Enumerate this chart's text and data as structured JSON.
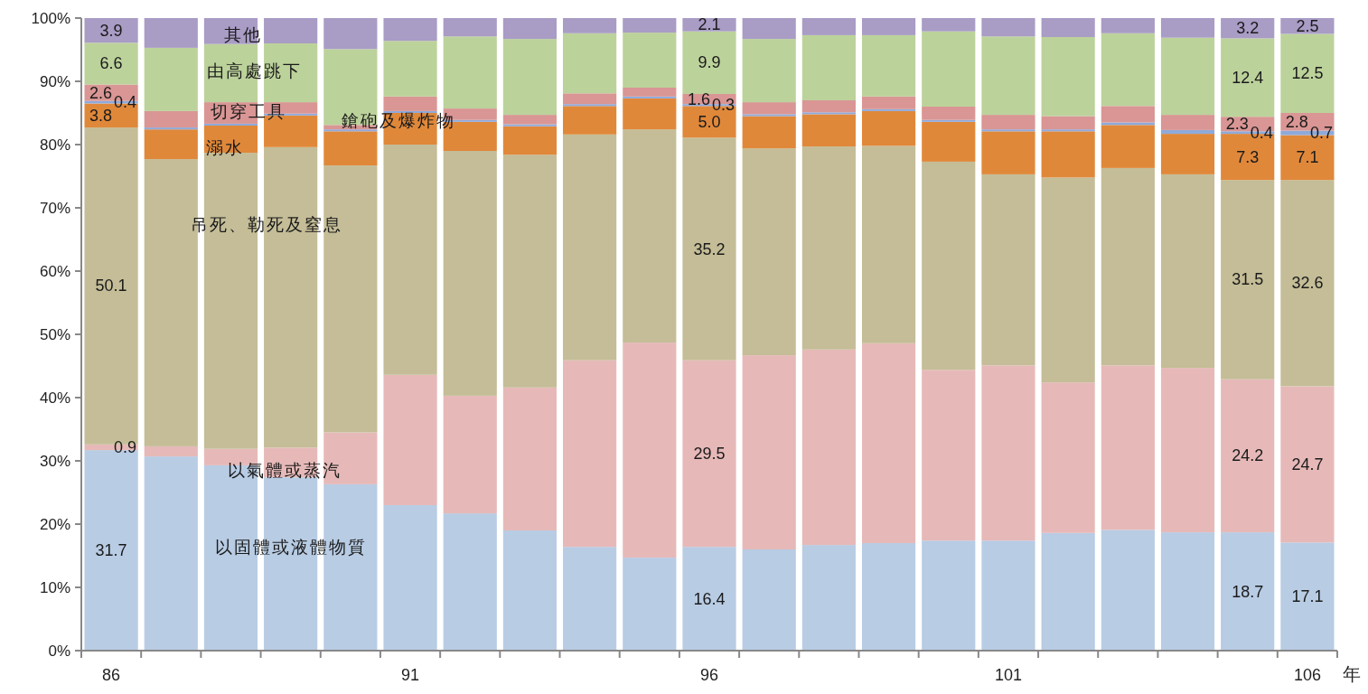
{
  "chart_data": {
    "type": "bar",
    "stacked": true,
    "xlabel": "年",
    "categories": [
      "86",
      null,
      null,
      null,
      null,
      "91",
      null,
      null,
      null,
      null,
      "96",
      null,
      null,
      null,
      null,
      "101",
      null,
      null,
      null,
      null,
      "106"
    ],
    "ylim": [
      0,
      100
    ],
    "yticks": [
      {
        "value": 0,
        "label": "0%"
      },
      {
        "value": 10,
        "label": "10%"
      },
      {
        "value": 20,
        "label": "20%"
      },
      {
        "value": 30,
        "label": "30%"
      },
      {
        "value": 40,
        "label": "40%"
      },
      {
        "value": 50,
        "label": "50%"
      },
      {
        "value": 60,
        "label": "60%"
      },
      {
        "value": 70,
        "label": "70%"
      },
      {
        "value": 80,
        "label": "80%"
      },
      {
        "value": 90,
        "label": "90%"
      },
      {
        "value": 100,
        "label": "100%"
      }
    ],
    "series": [
      {
        "name": "以固體或液體物質",
        "color": "#b8cce4",
        "values": [
          31.7,
          30.7,
          29.3,
          27.4,
          26.3,
          23.0,
          21.7,
          19.0,
          16.4,
          14.7,
          16.4,
          16.0,
          16.7,
          17.0,
          17.4,
          17.4,
          18.6,
          19.1,
          18.7,
          18.7,
          17.1
        ],
        "value_labels": [
          "31.7",
          null,
          null,
          null,
          null,
          null,
          null,
          null,
          null,
          null,
          "16.4",
          null,
          null,
          null,
          null,
          null,
          null,
          null,
          null,
          "18.7",
          "17.1"
        ]
      },
      {
        "name": "以氣體或蒸汽",
        "color": "#e6b9b8",
        "values": [
          0.9,
          1.6,
          2.6,
          4.7,
          8.2,
          20.6,
          18.6,
          22.6,
          29.5,
          34.0,
          29.5,
          30.7,
          30.9,
          31.6,
          27.0,
          27.7,
          23.8,
          26.0,
          26.0,
          24.2,
          24.7
        ],
        "value_labels": [
          "0.9",
          null,
          null,
          null,
          null,
          null,
          null,
          null,
          null,
          null,
          "29.5",
          null,
          null,
          null,
          null,
          null,
          null,
          null,
          null,
          "24.2",
          "24.7"
        ]
      },
      {
        "name": "吊死、勒死及窒息",
        "color": "#c4bd97",
        "values": [
          50.1,
          45.4,
          46.8,
          47.5,
          42.2,
          36.4,
          38.7,
          36.8,
          35.7,
          33.7,
          35.2,
          32.7,
          32.1,
          31.2,
          32.9,
          30.2,
          32.4,
          31.2,
          30.6,
          31.5,
          32.6
        ],
        "value_labels": [
          "50.1",
          null,
          null,
          null,
          null,
          null,
          null,
          null,
          null,
          null,
          "35.2",
          null,
          null,
          null,
          null,
          null,
          null,
          null,
          null,
          "31.5",
          "32.6"
        ]
      },
      {
        "name": "溺水",
        "color": "#e0883a",
        "values": [
          3.8,
          4.7,
          4.3,
          5.0,
          5.4,
          5.0,
          4.6,
          4.5,
          4.5,
          4.9,
          5.0,
          5.1,
          5.1,
          5.5,
          6.3,
          6.8,
          7.3,
          6.8,
          6.4,
          7.3,
          7.1
        ],
        "value_labels": [
          "3.8",
          null,
          null,
          null,
          null,
          null,
          null,
          null,
          null,
          null,
          "5.0",
          null,
          null,
          null,
          null,
          null,
          null,
          null,
          null,
          "7.3",
          "7.1"
        ]
      },
      {
        "name": "鎗砲及爆炸物",
        "color": "#8eaadb",
        "values": [
          0.4,
          0.3,
          0.3,
          0.3,
          0.3,
          0.3,
          0.3,
          0.3,
          0.3,
          0.3,
          0.3,
          0.3,
          0.3,
          0.3,
          0.3,
          0.3,
          0.3,
          0.4,
          0.6,
          0.4,
          0.7
        ],
        "value_labels": [
          "0.4",
          null,
          null,
          null,
          null,
          null,
          null,
          null,
          null,
          null,
          "0.3",
          null,
          null,
          null,
          null,
          null,
          null,
          null,
          null,
          "0.4",
          "0.7"
        ]
      },
      {
        "name": "切穿工具",
        "color": "#d99694",
        "values": [
          2.6,
          2.6,
          3.4,
          1.8,
          0.7,
          2.3,
          1.8,
          1.5,
          1.7,
          1.4,
          1.6,
          1.9,
          1.9,
          2.0,
          2.1,
          2.3,
          2.1,
          2.6,
          2.4,
          2.3,
          2.8
        ],
        "value_labels": [
          "2.6",
          null,
          null,
          null,
          null,
          null,
          null,
          null,
          null,
          null,
          "1.6",
          null,
          null,
          null,
          null,
          null,
          null,
          null,
          null,
          "2.3",
          "2.8"
        ]
      },
      {
        "name": "由高處跳下",
        "color": "#bcd29b",
        "values": [
          6.6,
          10.0,
          9.2,
          9.3,
          12.0,
          8.8,
          11.4,
          12.0,
          9.5,
          8.7,
          9.9,
          10.0,
          10.3,
          9.7,
          11.9,
          12.4,
          12.5,
          11.5,
          12.2,
          12.4,
          12.5
        ],
        "value_labels": [
          "6.6",
          null,
          null,
          null,
          null,
          null,
          null,
          null,
          null,
          null,
          "9.9",
          null,
          null,
          null,
          null,
          null,
          null,
          null,
          null,
          "12.4",
          "12.5"
        ]
      },
      {
        "name": "其他",
        "color": "#a99cc5",
        "values": [
          3.9,
          4.7,
          4.1,
          4.0,
          4.9,
          3.6,
          2.9,
          3.3,
          2.4,
          2.3,
          2.1,
          3.3,
          2.7,
          2.7,
          2.1,
          2.9,
          3.0,
          2.4,
          3.1,
          3.2,
          2.5
        ],
        "value_labels": [
          "3.9",
          null,
          null,
          null,
          null,
          null,
          null,
          null,
          null,
          null,
          "2.1",
          null,
          null,
          null,
          null,
          null,
          null,
          null,
          null,
          "3.2",
          "2.5"
        ]
      }
    ]
  }
}
